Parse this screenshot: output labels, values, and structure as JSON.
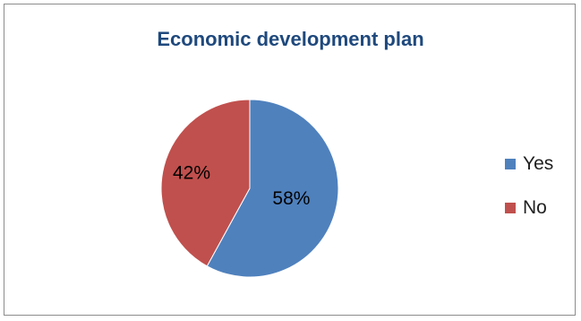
{
  "chart_data": {
    "type": "pie",
    "title": "Economic development plan",
    "categories": [
      "Yes",
      "No"
    ],
    "values": [
      58,
      42
    ],
    "labels": [
      "58%",
      "42%"
    ],
    "colors": [
      "#4f81bd",
      "#c0504d"
    ],
    "legend_position": "right"
  }
}
